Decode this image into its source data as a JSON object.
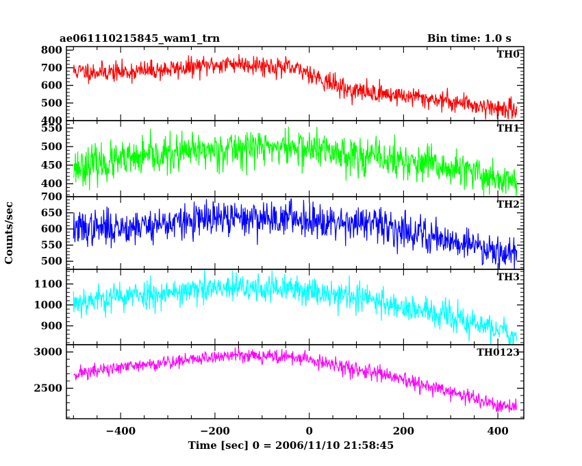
{
  "header": {
    "title": "ae061110215845_wam1_trn",
    "bin_time": "Bin time: 1.0 s"
  },
  "chart_data": {
    "type": "line",
    "xlabel": "Time [sec] 0 = 2006/11/10 21:58:45",
    "ylabel": "Counts/sec",
    "xlim": [
      -515,
      455
    ],
    "x_ticks": [
      -400,
      -200,
      0,
      200,
      400
    ],
    "x_tick_labels": [
      "−400",
      "−200",
      "0",
      "200",
      "400"
    ],
    "x_data_range": [
      -500,
      440
    ],
    "grid": false,
    "panels": [
      {
        "name": "TH0",
        "color": "#ff0000",
        "ylim": [
          400,
          820
        ],
        "y_ticks": [
          400,
          500,
          600,
          700,
          800
        ],
        "y_tick_labels": [
          "400",
          "500",
          "600",
          "700",
          "800"
        ],
        "noise": 28,
        "seed": 11,
        "trend": [
          [
            -500,
            680
          ],
          [
            -400,
            675
          ],
          [
            -300,
            690
          ],
          [
            -200,
            715
          ],
          [
            -150,
            725
          ],
          [
            -100,
            715
          ],
          [
            -50,
            700
          ],
          [
            0,
            675
          ],
          [
            30,
            630
          ],
          [
            80,
            575
          ],
          [
            150,
            555
          ],
          [
            200,
            540
          ],
          [
            300,
            510
          ],
          [
            400,
            470
          ],
          [
            440,
            455
          ]
        ]
      },
      {
        "name": "TH1",
        "color": "#00ff00",
        "ylim": [
          365,
          570
        ],
        "y_ticks": [
          400,
          450,
          500,
          550
        ],
        "y_tick_labels": [
          "400",
          "450",
          "500",
          "550"
        ],
        "noise": 25,
        "seed": 23,
        "trend": [
          [
            -500,
            445
          ],
          [
            -400,
            460
          ],
          [
            -300,
            478
          ],
          [
            -200,
            492
          ],
          [
            -100,
            500
          ],
          [
            0,
            495
          ],
          [
            100,
            478
          ],
          [
            200,
            460
          ],
          [
            300,
            440
          ],
          [
            400,
            415
          ],
          [
            440,
            405
          ]
        ]
      },
      {
        "name": "TH2",
        "color": "#0000ff",
        "ylim": [
          475,
          700
        ],
        "y_ticks": [
          500,
          550,
          600,
          650,
          700
        ],
        "y_tick_labels": [
          "500",
          "550",
          "600",
          "650",
          "700"
        ],
        "noise": 27,
        "seed": 37,
        "trend": [
          [
            -500,
            600
          ],
          [
            -400,
            605
          ],
          [
            -300,
            618
          ],
          [
            -200,
            630
          ],
          [
            -100,
            635
          ],
          [
            0,
            632
          ],
          [
            100,
            620
          ],
          [
            200,
            598
          ],
          [
            300,
            565
          ],
          [
            400,
            535
          ],
          [
            440,
            525
          ]
        ]
      },
      {
        "name": "TH3",
        "color": "#00ffff",
        "ylim": [
          810,
          1170
        ],
        "y_ticks": [
          900,
          1000,
          1100
        ],
        "y_tick_labels": [
          "900",
          "1000",
          "1100"
        ],
        "noise": 35,
        "seed": 53,
        "trend": [
          [
            -500,
            1015
          ],
          [
            -400,
            1040
          ],
          [
            -300,
            1060
          ],
          [
            -200,
            1075
          ],
          [
            -100,
            1080
          ],
          [
            0,
            1070
          ],
          [
            100,
            1040
          ],
          [
            200,
            990
          ],
          [
            300,
            940
          ],
          [
            400,
            880
          ],
          [
            440,
            860
          ]
        ]
      },
      {
        "name": "TH0123",
        "color": "#ff00ff",
        "ylim": [
          2080,
          3100
        ],
        "y_ticks": [
          2500,
          3000
        ],
        "y_tick_labels": [
          "2500",
          "3000"
        ],
        "noise": 50,
        "seed": 71,
        "trend": [
          [
            -500,
            2700
          ],
          [
            -400,
            2780
          ],
          [
            -300,
            2860
          ],
          [
            -200,
            2930
          ],
          [
            -150,
            2965
          ],
          [
            -100,
            2950
          ],
          [
            -50,
            2930
          ],
          [
            0,
            2900
          ],
          [
            50,
            2810
          ],
          [
            100,
            2760
          ],
          [
            150,
            2700
          ],
          [
            200,
            2600
          ],
          [
            300,
            2450
          ],
          [
            400,
            2260
          ],
          [
            440,
            2220
          ]
        ]
      }
    ]
  }
}
